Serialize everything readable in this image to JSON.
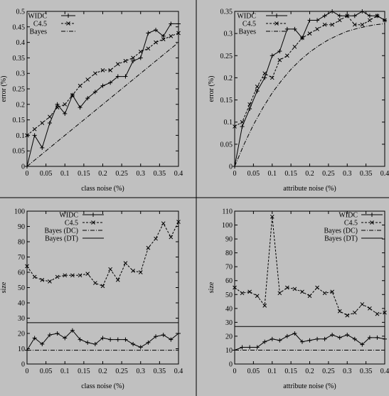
{
  "figure": {
    "background": "#c0c0c0",
    "divider_color": "#000000",
    "line_color": "#000000"
  },
  "chart_data": [
    {
      "type": "line",
      "xlabel": "class noise (%)",
      "ylabel": "error (%)",
      "xlim": [
        0,
        0.4
      ],
      "ylim": [
        0,
        0.5
      ],
      "xticks": [
        "0",
        "0.05",
        "0.1",
        "0.15",
        "0.2",
        "0.25",
        "0.3",
        "0.35",
        "0.4"
      ],
      "yticks": [
        "0",
        "0.05",
        "0.1",
        "0.15",
        "0.2",
        "0.25",
        "0.3",
        "0.35",
        "0.4",
        "0.45",
        "0.5"
      ],
      "legend_position": "top-left",
      "series": [
        {
          "name": "WIDC",
          "style": "solid-plus",
          "x": [
            0,
            0.02,
            0.04,
            0.06,
            0.08,
            0.1,
            0.12,
            0.14,
            0.16,
            0.18,
            0.2,
            0.22,
            0.24,
            0.26,
            0.28,
            0.3,
            0.32,
            0.34,
            0.36,
            0.38,
            0.4
          ],
          "y": [
            0,
            0.1,
            0.06,
            0.14,
            0.2,
            0.17,
            0.23,
            0.19,
            0.22,
            0.24,
            0.26,
            0.27,
            0.29,
            0.29,
            0.34,
            0.35,
            0.43,
            0.44,
            0.42,
            0.46,
            0.46
          ]
        },
        {
          "name": "C4.5",
          "style": "dashed-x",
          "x": [
            0,
            0.02,
            0.04,
            0.06,
            0.08,
            0.1,
            0.12,
            0.14,
            0.16,
            0.18,
            0.2,
            0.22,
            0.24,
            0.26,
            0.28,
            0.3,
            0.32,
            0.34,
            0.36,
            0.38,
            0.4
          ],
          "y": [
            0.1,
            0.12,
            0.14,
            0.16,
            0.19,
            0.2,
            0.23,
            0.26,
            0.28,
            0.3,
            0.31,
            0.31,
            0.33,
            0.34,
            0.35,
            0.37,
            0.38,
            0.4,
            0.41,
            0.42,
            0.43
          ]
        },
        {
          "name": "Bayes",
          "style": "dashdot",
          "x": [
            0,
            0.4
          ],
          "y": [
            0,
            0.4
          ]
        }
      ]
    },
    {
      "type": "line",
      "xlabel": "attribute noise (%)",
      "ylabel": "error (%)",
      "xlim": [
        0,
        0.4
      ],
      "ylim": [
        0,
        0.35
      ],
      "xticks": [
        "0",
        "0.05",
        "0.1",
        "0.15",
        "0.2",
        "0.25",
        "0.3",
        "0.35",
        "0.4"
      ],
      "yticks": [
        "0",
        "0.05",
        "0.1",
        "0.15",
        "0.2",
        "0.25",
        "0.3",
        "0.35"
      ],
      "legend_position": "top-left",
      "series": [
        {
          "name": "WIDC",
          "style": "solid-plus",
          "x": [
            0,
            0.02,
            0.04,
            0.06,
            0.08,
            0.1,
            0.12,
            0.14,
            0.16,
            0.18,
            0.2,
            0.22,
            0.24,
            0.26,
            0.28,
            0.3,
            0.32,
            0.34,
            0.36,
            0.38,
            0.4
          ],
          "y": [
            0,
            0.09,
            0.13,
            0.17,
            0.2,
            0.25,
            0.26,
            0.31,
            0.31,
            0.29,
            0.33,
            0.33,
            0.34,
            0.35,
            0.34,
            0.34,
            0.34,
            0.35,
            0.34,
            0.34,
            0.33
          ]
        },
        {
          "name": "C4.5",
          "style": "dashed-x",
          "x": [
            0,
            0.02,
            0.04,
            0.06,
            0.08,
            0.1,
            0.12,
            0.14,
            0.16,
            0.18,
            0.2,
            0.22,
            0.24,
            0.26,
            0.28,
            0.3,
            0.32,
            0.34,
            0.36,
            0.38,
            0.4
          ],
          "y": [
            0.09,
            0.1,
            0.14,
            0.18,
            0.21,
            0.2,
            0.24,
            0.25,
            0.27,
            0.29,
            0.3,
            0.31,
            0.32,
            0.32,
            0.33,
            0.34,
            0.32,
            0.32,
            0.33,
            0.34,
            0.33
          ]
        },
        {
          "name": "Bayes",
          "style": "dashdot",
          "x": [
            0,
            0.025,
            0.05,
            0.075,
            0.1,
            0.125,
            0.15,
            0.175,
            0.2,
            0.225,
            0.25,
            0.275,
            0.3,
            0.325,
            0.35,
            0.375,
            0.4
          ],
          "y": [
            0,
            0.05,
            0.094,
            0.132,
            0.166,
            0.194,
            0.219,
            0.24,
            0.258,
            0.273,
            0.286,
            0.296,
            0.305,
            0.311,
            0.316,
            0.32,
            0.322
          ]
        }
      ]
    },
    {
      "type": "line",
      "xlabel": "class noise (%)",
      "ylabel": "size",
      "xlim": [
        0,
        0.4
      ],
      "ylim": [
        0,
        100
      ],
      "xticks": [
        "0",
        "0.05",
        "0.1",
        "0.15",
        "0.2",
        "0.25",
        "0.3",
        "0.35",
        "0.4"
      ],
      "yticks": [
        "0",
        "10",
        "20",
        "30",
        "40",
        "50",
        "60",
        "70",
        "80",
        "90",
        "100"
      ],
      "legend_position": "top-center",
      "series": [
        {
          "name": "WIDC",
          "style": "solid-plus",
          "x": [
            0,
            0.02,
            0.04,
            0.06,
            0.08,
            0.1,
            0.12,
            0.14,
            0.16,
            0.18,
            0.2,
            0.22,
            0.24,
            0.26,
            0.28,
            0.3,
            0.32,
            0.34,
            0.36,
            0.38,
            0.4
          ],
          "y": [
            9,
            17,
            13,
            19,
            20,
            17,
            22,
            16,
            14,
            13,
            17,
            16,
            16,
            16,
            13,
            11,
            14,
            18,
            19,
            16,
            20
          ]
        },
        {
          "name": "C4.5",
          "style": "dashed-x",
          "x": [
            0,
            0.02,
            0.04,
            0.06,
            0.08,
            0.1,
            0.12,
            0.14,
            0.16,
            0.18,
            0.2,
            0.22,
            0.24,
            0.26,
            0.28,
            0.3,
            0.32,
            0.34,
            0.36,
            0.38,
            0.4
          ],
          "y": [
            64,
            57,
            55,
            54,
            57,
            58,
            58,
            58,
            59,
            53,
            51,
            62,
            55,
            66,
            61,
            60,
            76,
            82,
            92,
            83,
            93
          ]
        },
        {
          "name": "Bayes (DC)",
          "style": "dashdot",
          "x": [
            0,
            0.4
          ],
          "y": [
            9,
            9
          ]
        },
        {
          "name": "Bayes (DT)",
          "style": "solid",
          "x": [
            0,
            0.4
          ],
          "y": [
            27,
            27
          ]
        }
      ]
    },
    {
      "type": "line",
      "xlabel": "attribute noise (%)",
      "ylabel": "size",
      "xlim": [
        0,
        0.4
      ],
      "ylim": [
        0,
        110
      ],
      "xticks": [
        "0",
        "0.05",
        "0.1",
        "0.15",
        "0.2",
        "0.25",
        "0.3",
        "0.35",
        "0.4"
      ],
      "yticks": [
        "0",
        "10",
        "20",
        "30",
        "40",
        "50",
        "60",
        "70",
        "80",
        "90",
        "100",
        "110"
      ],
      "legend_position": "top-right",
      "series": [
        {
          "name": "WIDC",
          "style": "solid-plus",
          "x": [
            0,
            0.02,
            0.04,
            0.06,
            0.08,
            0.1,
            0.12,
            0.14,
            0.16,
            0.18,
            0.2,
            0.22,
            0.24,
            0.26,
            0.28,
            0.3,
            0.32,
            0.34,
            0.36,
            0.38,
            0.4
          ],
          "y": [
            10,
            12,
            12,
            12,
            16,
            18,
            17,
            20,
            22,
            16,
            17,
            18,
            18,
            21,
            19,
            21,
            18,
            14,
            19,
            19,
            18
          ]
        },
        {
          "name": "C4.5",
          "style": "dashed-x",
          "x": [
            0,
            0.02,
            0.04,
            0.06,
            0.08,
            0.1,
            0.12,
            0.14,
            0.16,
            0.18,
            0.2,
            0.22,
            0.24,
            0.26,
            0.28,
            0.3,
            0.32,
            0.34,
            0.36,
            0.38,
            0.4
          ],
          "y": [
            55,
            51,
            52,
            49,
            42,
            106,
            51,
            55,
            54,
            52,
            49,
            55,
            51,
            52,
            38,
            35,
            37,
            43,
            40,
            36,
            37
          ]
        },
        {
          "name": "Bayes (DC)",
          "style": "dashdot",
          "x": [
            0,
            0.4
          ],
          "y": [
            10,
            10
          ]
        },
        {
          "name": "Bayes (DT)",
          "style": "solid",
          "x": [
            0,
            0.4
          ],
          "y": [
            27,
            27
          ]
        }
      ]
    }
  ]
}
